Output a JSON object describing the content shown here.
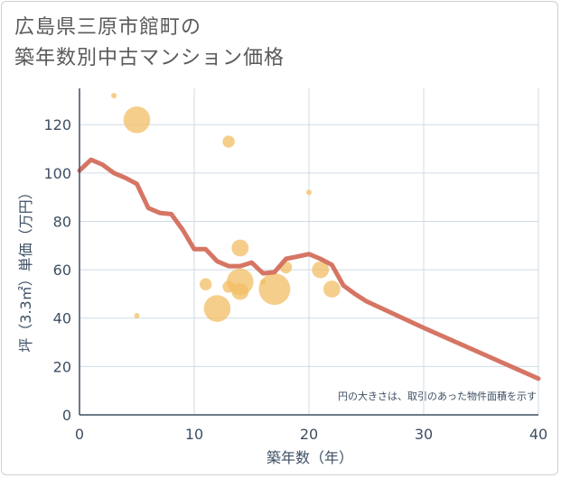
{
  "chart_data": {
    "type": "scatter",
    "title_lines": [
      "広島県三原市館町の",
      "築年数別中古マンション価格"
    ],
    "xlabel": "築年数（年）",
    "ylabel": "坪（3.3㎡）単価（万円）",
    "xlim": [
      0,
      40
    ],
    "ylim": [
      0,
      135
    ],
    "xticks": [
      0,
      10,
      20,
      30,
      40
    ],
    "yticks": [
      0,
      20,
      40,
      60,
      80,
      100,
      120
    ],
    "annotation": "円の大きさは、取引のあった物件面積を示す",
    "colors": {
      "bubble": "#f3bd64",
      "line": "#d46e5c",
      "grid": "#cfdbe6",
      "axis": "#3d4f63"
    },
    "bubbles": [
      {
        "x": 3,
        "y": 132,
        "size": 1
      },
      {
        "x": 5,
        "y": 122,
        "size": 5
      },
      {
        "x": 5,
        "y": 41,
        "size": 1
      },
      {
        "x": 11,
        "y": 54,
        "size": 2
      },
      {
        "x": 12,
        "y": 44,
        "size": 5
      },
      {
        "x": 13,
        "y": 113,
        "size": 2
      },
      {
        "x": 13,
        "y": 53,
        "size": 2
      },
      {
        "x": 14,
        "y": 69,
        "size": 3
      },
      {
        "x": 14,
        "y": 55,
        "size": 5
      },
      {
        "x": 14,
        "y": 51,
        "size": 3
      },
      {
        "x": 16,
        "y": 55,
        "size": 1
      },
      {
        "x": 17,
        "y": 52,
        "size": 6
      },
      {
        "x": 18,
        "y": 61,
        "size": 2
      },
      {
        "x": 20,
        "y": 92,
        "size": 1
      },
      {
        "x": 21,
        "y": 60,
        "size": 3
      },
      {
        "x": 22,
        "y": 52,
        "size": 3
      }
    ],
    "trend": {
      "x": [
        0,
        1,
        2,
        3,
        4,
        5,
        6,
        7,
        8,
        9,
        10,
        11,
        12,
        13,
        14,
        15,
        16,
        17,
        18,
        19,
        20,
        21,
        22,
        23,
        24,
        25,
        30,
        35,
        40
      ],
      "y": [
        101,
        105.5,
        103.5,
        100,
        98,
        95.5,
        85.5,
        83.5,
        83,
        76.5,
        68.5,
        68.5,
        63.5,
        61.5,
        61.5,
        63,
        58.5,
        59,
        64.5,
        65.5,
        66.5,
        64.5,
        62,
        53.5,
        50,
        47,
        36,
        25.5,
        15
      ]
    }
  }
}
